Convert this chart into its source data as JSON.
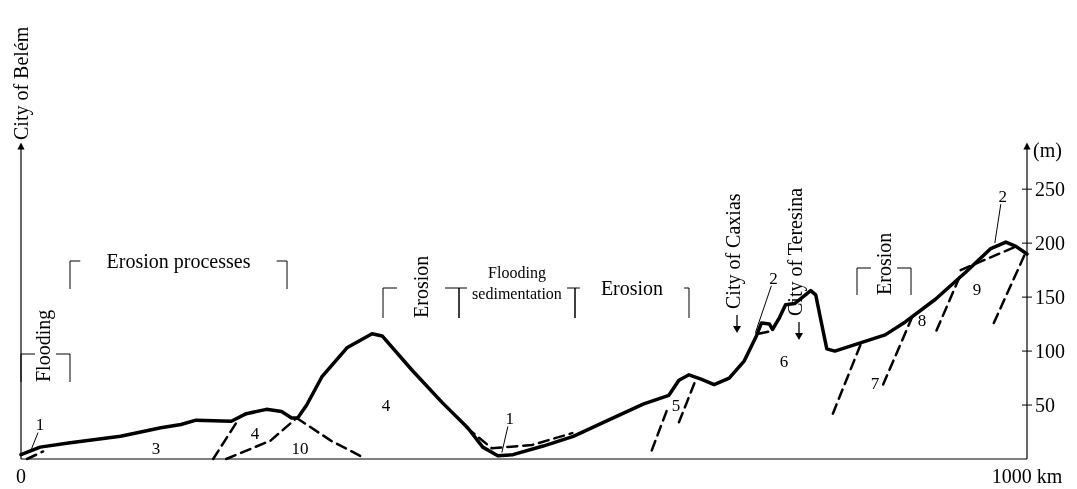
{
  "chart_data": {
    "type": "line",
    "ylabel": "(m)",
    "xlim": [
      0,
      1000
    ],
    "ylim": [
      0,
      290
    ],
    "xticks": [
      {
        "value": 0,
        "label": "0"
      },
      {
        "value": 1000,
        "label": "1000 km"
      }
    ],
    "yticks": [
      50,
      100,
      150,
      200,
      250
    ],
    "marker": "none",
    "series": [
      {
        "color": "#000000",
        "line_style": "solid",
        "x": [
          0,
          19,
          49,
          99,
          139,
          159,
          174,
          209,
          224,
          244,
          259,
          269,
          275,
          284,
          299,
          324,
          349,
          359,
          389,
          419,
          444,
          459,
          474,
          489,
          519,
          549,
          579,
          619,
          644,
          654,
          664,
          676,
          689,
          704,
          719,
          731,
          736,
          744,
          747,
          754,
          760,
          769,
          785,
          790,
          795,
          801,
          809,
          839,
          859,
          879,
          909,
          939,
          964,
          979,
          989,
          1000
        ],
        "values": [
          4,
          11,
          15,
          21,
          29,
          32,
          36,
          35,
          42,
          46,
          44,
          38,
          38,
          50,
          76,
          103,
          116,
          114,
          82,
          52,
          29,
          11,
          3,
          4,
          12,
          21,
          34,
          51,
          59,
          73,
          78,
          74,
          69,
          75,
          91,
          114,
          126,
          125,
          120,
          131,
          143,
          144,
          156,
          152,
          129,
          102,
          100,
          109,
          115,
          127,
          148,
          173,
          195,
          201,
          197,
          190
        ]
      },
      {
        "color": "#000000",
        "line_style": "dashed",
        "x": [
          6,
          22
        ],
        "values": [
          0,
          7
        ]
      },
      {
        "color": "#000000",
        "line_style": "dashed",
        "x": [
          191,
          215
        ],
        "values": [
          0,
          35
        ]
      },
      {
        "color": "#000000",
        "line_style": "dashed",
        "x": [
          204,
          248,
          274
        ],
        "values": [
          0,
          17,
          38
        ]
      },
      {
        "color": "#000000",
        "line_style": "dashed",
        "x": [
          274,
          308,
          339
        ],
        "values": [
          38,
          17,
          2
        ]
      },
      {
        "color": "#000000",
        "line_style": "dashed",
        "x": [
          443,
          468,
          508,
          548
        ],
        "values": [
          29,
          10,
          13,
          24
        ]
      },
      {
        "color": "#000000",
        "line_style": "dashed",
        "x": [
          627,
          642
        ],
        "values": [
          8,
          45
        ]
      },
      {
        "color": "#000000",
        "line_style": "dashed",
        "x": [
          654,
          671
        ],
        "values": [
          34,
          74
        ]
      },
      {
        "color": "#000000",
        "line_style": "dashed",
        "x": [
          733,
          748
        ],
        "values": [
          116,
          119
        ]
      },
      {
        "color": "#000000",
        "line_style": "dashed",
        "x": [
          807,
          835
        ],
        "values": [
          42,
          107
        ]
      },
      {
        "color": "#000000",
        "line_style": "dashed",
        "x": [
          857,
          887
        ],
        "values": [
          69,
          134
        ]
      },
      {
        "color": "#000000",
        "line_style": "dashed",
        "x": [
          910,
          935
        ],
        "values": [
          119,
          173
        ]
      },
      {
        "color": "#000000",
        "line_style": "dashed",
        "x": [
          967,
          999
        ],
        "values": [
          126,
          192
        ]
      },
      {
        "color": "#000000",
        "line_style": "dashed",
        "x": [
          934,
          992
        ],
        "values": [
          175,
          198
        ]
      }
    ],
    "annotations": [
      "City of Belém",
      "City of Caxias",
      "City of Teresina",
      "Flooding",
      "Erosion processes",
      "Erosion",
      "Flooding sedimentation",
      "Erosion",
      "Erosion",
      {
        "text": "1",
        "x": 9,
        "y": 6
      },
      "3",
      "4",
      "10",
      "4",
      {
        "text": "1",
        "x": 478,
        "y": 6
      },
      "5",
      {
        "text": "2",
        "x": 730,
        "y": 117
      },
      "6",
      "7",
      "8",
      "9",
      {
        "text": "2",
        "x": 968,
        "y": 200
      }
    ]
  }
}
